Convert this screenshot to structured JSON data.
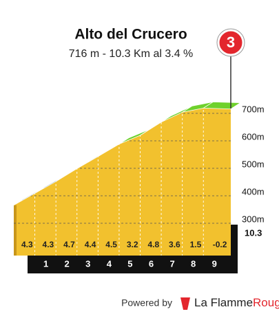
{
  "chart_data": {
    "type": "climb-profile",
    "title": "Alto del Crucero",
    "subtitle": "716 m - 10.3 Km al 3.4 %",
    "category": "3",
    "x": [
      0,
      1,
      2,
      3,
      4,
      5,
      6,
      7,
      8,
      9,
      10.3
    ],
    "elevations": [
      366,
      409,
      452,
      499,
      543,
      588,
      620,
      668,
      704,
      719,
      716
    ],
    "gradients": [
      4.3,
      4.3,
      4.7,
      4.4,
      4.5,
      3.2,
      4.8,
      3.6,
      1.5,
      -0.2
    ],
    "segment_colors": [
      "#1d5e86",
      "#1d5e86",
      "#1d5e86",
      "#1d5e86",
      "#1d5e86",
      "#6fd12c",
      "#1d5e86",
      "#6fd12c",
      "#6fd12c",
      "#6fd12c"
    ],
    "xlim": [
      0,
      10.3
    ],
    "xticks": [
      1,
      2,
      3,
      4,
      5,
      6,
      7,
      8,
      9,
      10.3
    ],
    "ylim": [
      250,
      750
    ],
    "yticks": [
      {
        "value": 300,
        "label": "300m"
      },
      {
        "value": 400,
        "label": "400m"
      },
      {
        "value": 500,
        "label": "500m"
      },
      {
        "value": 600,
        "label": "600m"
      },
      {
        "value": 700,
        "label": "700m"
      }
    ],
    "fill_color": "#f2c12e",
    "grid": true
  },
  "footer": {
    "prefix": "Powered by",
    "brand": "La Flamme",
    "brand_accent": "Rouge"
  }
}
